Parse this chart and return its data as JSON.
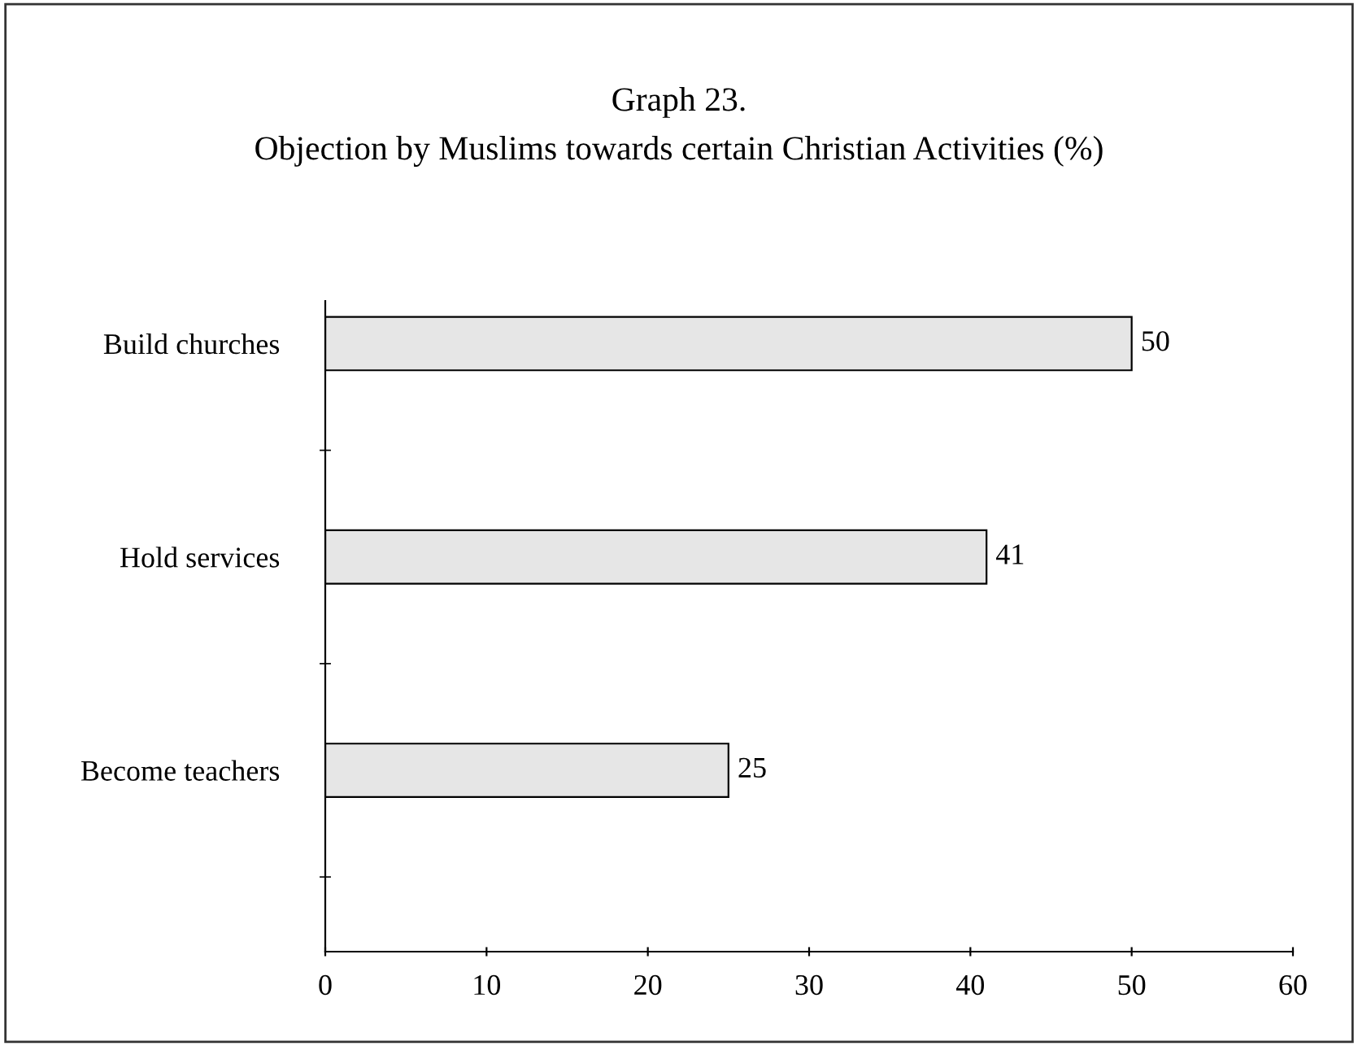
{
  "chart_data": {
    "type": "bar",
    "orientation": "horizontal",
    "title": "Graph 23.",
    "subtitle": "Objection by Muslims towards certain Christian Activities (%)",
    "categories": [
      "Build churches",
      "Hold services",
      "Become teachers"
    ],
    "values": [
      50,
      41,
      25
    ],
    "color": "#e6e6e6",
    "xlim": [
      0,
      60
    ],
    "xticks": [
      0,
      10,
      20,
      30,
      40,
      50,
      60
    ],
    "data_labels": true,
    "grid": false,
    "legend": false
  }
}
